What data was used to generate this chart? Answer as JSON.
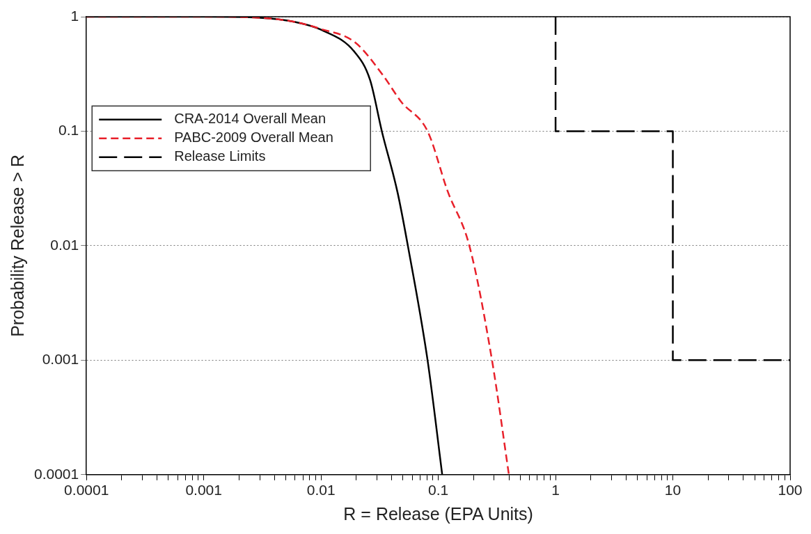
{
  "chart_data": {
    "type": "line",
    "xlabel": "R = Release (EPA Units)",
    "ylabel": "Probability Release > R",
    "log": "xy",
    "xlim": [
      0.0001,
      100
    ],
    "ylim": [
      0.0001,
      1
    ],
    "xticks": [
      0.0001,
      {
        "value": 0.0002,
        "label": null
      },
      {
        "value": 0.0003,
        "label": null
      },
      {
        "value": 0.0004,
        "label": null
      },
      {
        "value": 0.0005,
        "label": null
      },
      {
        "value": 0.0006,
        "label": null
      },
      {
        "value": 0.0007,
        "label": null
      },
      {
        "value": 0.0008,
        "label": null
      },
      {
        "value": 0.0009,
        "label": null
      },
      0.001,
      {
        "value": 0.002,
        "label": null
      },
      {
        "value": 0.003,
        "label": null
      },
      {
        "value": 0.004,
        "label": null
      },
      {
        "value": 0.005,
        "label": null
      },
      {
        "value": 0.006,
        "label": null
      },
      {
        "value": 0.007,
        "label": null
      },
      {
        "value": 0.008,
        "label": null
      },
      {
        "value": 0.009,
        "label": null
      },
      0.01,
      {
        "value": 0.02,
        "label": null
      },
      {
        "value": 0.03,
        "label": null
      },
      {
        "value": 0.04,
        "label": null
      },
      {
        "value": 0.05,
        "label": null
      },
      {
        "value": 0.06,
        "label": null
      },
      {
        "value": 0.07,
        "label": null
      },
      {
        "value": 0.08,
        "label": null
      },
      {
        "value": 0.09,
        "label": null
      },
      0.1,
      {
        "value": 0.2,
        "label": null
      },
      {
        "value": 0.3,
        "label": null
      },
      {
        "value": 0.4,
        "label": null
      },
      {
        "value": 0.5,
        "label": null
      },
      {
        "value": 0.6,
        "label": null
      },
      {
        "value": 0.7,
        "label": null
      },
      {
        "value": 0.8,
        "label": null
      },
      {
        "value": 0.9,
        "label": null
      },
      1,
      {
        "value": 2,
        "label": null
      },
      {
        "value": 3,
        "label": null
      },
      {
        "value": 4,
        "label": null
      },
      {
        "value": 5,
        "label": null
      },
      {
        "value": 6,
        "label": null
      },
      {
        "value": 7,
        "label": null
      },
      {
        "value": 8,
        "label": null
      },
      {
        "value": 9,
        "label": null
      },
      10,
      {
        "value": 20,
        "label": null
      },
      {
        "value": 30,
        "label": null
      },
      {
        "value": 40,
        "label": null
      },
      {
        "value": 50,
        "label": null
      },
      {
        "value": 60,
        "label": null
      },
      {
        "value": 70,
        "label": null
      },
      {
        "value": 80,
        "label": null
      },
      {
        "value": 90,
        "label": null
      },
      100
    ],
    "yticks": [
      0.0001,
      0.001,
      0.01,
      0.1,
      1
    ],
    "grid": "y",
    "legend": "left",
    "marker": "none",
    "series": [
      {
        "name": "CRA-2014 Overall Mean",
        "color": "#000000",
        "line_style": "solid",
        "x": [
          0.0001,
          0.001,
          0.003,
          0.006,
          0.01,
          0.0194,
          0.0262,
          0.033,
          0.045,
          0.055,
          0.081,
          0.108
        ],
        "values": [
          1,
          1,
          0.98,
          0.9,
          0.77,
          0.49,
          0.28,
          0.1,
          0.029,
          0.01,
          0.001,
          0.0001
        ]
      },
      {
        "name": "PABC-2009 Overall Mean",
        "color": "#e8202a",
        "line_style": "dashed",
        "x": [
          0.0001,
          0.001,
          0.003,
          0.006,
          0.01,
          0.0194,
          0.0336,
          0.0484,
          0.081,
          0.12,
          0.184,
          0.287,
          0.4
        ],
        "values": [
          1,
          1,
          0.98,
          0.9,
          0.78,
          0.6,
          0.31,
          0.18,
          0.1,
          0.03,
          0.01,
          0.001,
          0.0001
        ]
      },
      {
        "name": "Release Limits",
        "type": "step",
        "color": "#000000",
        "line_style": "dashed",
        "x": [
          1,
          1,
          10,
          10,
          100
        ],
        "values": [
          1,
          0.1,
          0.1,
          0.001,
          0.001
        ]
      }
    ]
  }
}
